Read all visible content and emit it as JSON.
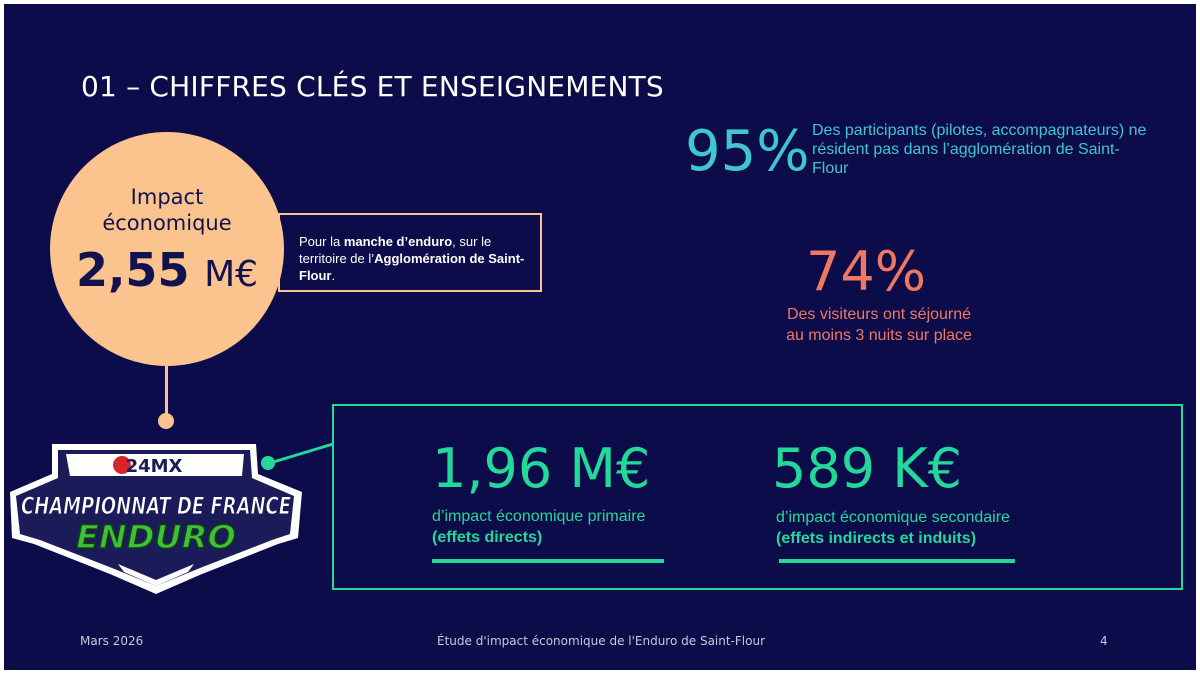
{
  "slide": {
    "title": "01 – CHIFFRES CLÉS ET ENSEIGNEMENTS",
    "impact": {
      "label_line1": "Impact",
      "label_line2": "économique",
      "value": "2,55",
      "unit": "M€",
      "note": {
        "t1": "Pour la ",
        "b1": "manche d’enduro",
        "t2": ", sur le territoire de l’",
        "b2": "Agglomération de Saint-Flour",
        "t3": "."
      }
    },
    "stats": [
      {
        "value": "95%",
        "text": "Des participants (pilotes, accompagnateurs) ne résident pas dans l’agglomération de Saint-Flour"
      },
      {
        "value": "74%",
        "line1": "Des visiteurs ont séjourné",
        "line2": "au moins 3 nuits sur place"
      }
    ],
    "logo": {
      "brand": "24MX",
      "line1": "CHAMPIONNAT DE FRANCE",
      "line2": "ENDURO"
    },
    "breakdown": [
      {
        "value": "1,96 M€",
        "line1": "d’impact économique primaire",
        "line2": "(effets directs)"
      },
      {
        "value": "589 K€",
        "line1": "d’impact économique secondaire",
        "line2": "(effets indirects et induits)"
      }
    ],
    "footer": {
      "date": "Mars 2026",
      "center": "Étude d'impact économique de l'Enduro de Saint-Flour",
      "page": "4"
    },
    "colors": {
      "background": "#0c0c4a",
      "impact": "#fbc38e",
      "cyan": "#3fc6cf",
      "coral": "#f07860",
      "green": "#22d99a"
    }
  }
}
